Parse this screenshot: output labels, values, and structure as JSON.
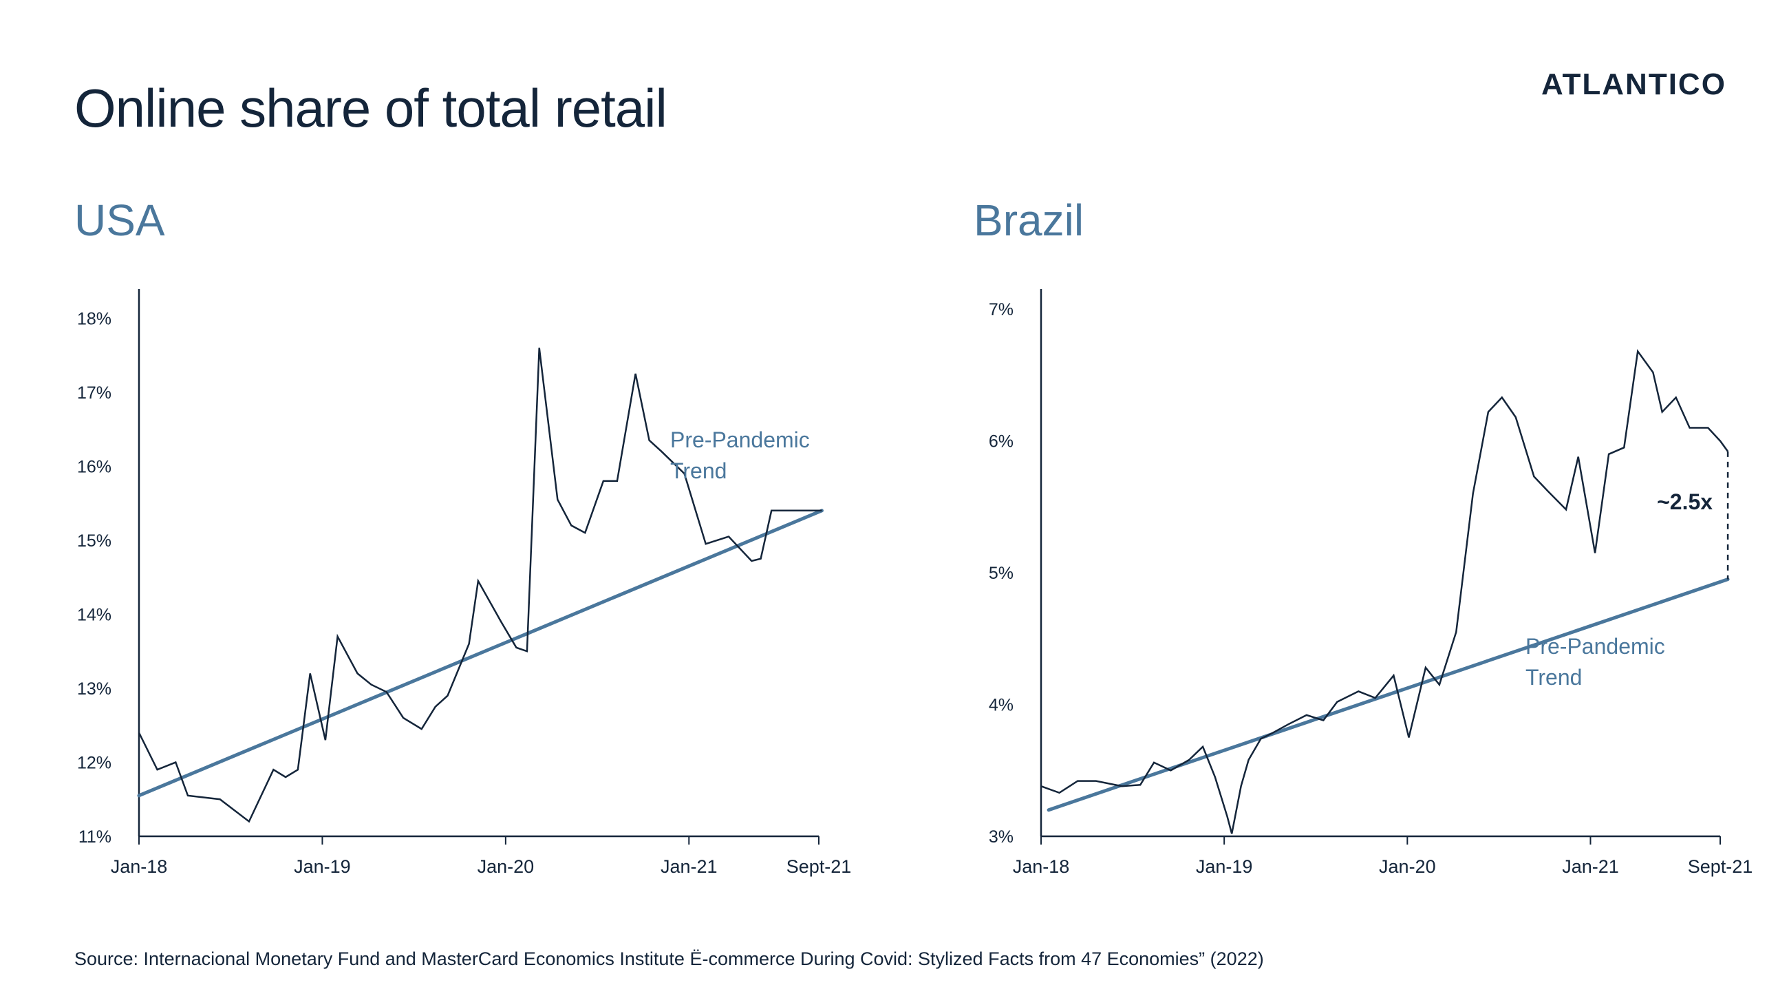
{
  "page": {
    "title": "Online share of total retail",
    "logo": "ATLANTICO",
    "source": "Source: Internacional Monetary Fund and MasterCard Economics Institute Ë-commerce During Covid: Stylized Facts from 47 Economies” (2022)"
  },
  "colors": {
    "ink": "#14253a",
    "accent": "#4a779c",
    "trend": "#4a779c",
    "line": "#14253a"
  },
  "chart_data": [
    {
      "type": "line",
      "title": "USA",
      "xlabel": "",
      "ylabel": "",
      "x_ticks": [
        "Jan-18",
        "Jan-19",
        "Jan-20",
        "Jan-21",
        "Sept-21"
      ],
      "x_tick_months": [
        0,
        12,
        24,
        36,
        44.5
      ],
      "xlim": [
        0,
        44.5
      ],
      "y_ticks": [
        "11%",
        "12%",
        "13%",
        "14%",
        "15%",
        "16%",
        "17%",
        "18%"
      ],
      "ylim": [
        11,
        18.3
      ],
      "series": [
        {
          "name": "",
          "x": [
            0,
            1.2,
            2.4,
            3.2,
            5.3,
            7.2,
            8.8,
            9.6,
            10.4,
            11.2,
            12.2,
            13,
            14.3,
            15.2,
            16.2,
            17.3,
            18.5,
            19.4,
            20.2,
            21.6,
            22.2,
            23.7,
            24.7,
            25.4,
            26.2,
            27.4,
            28.3,
            29.2,
            30.4,
            31.3,
            32.5,
            33.4,
            34.2,
            35.7,
            37.1,
            38.6,
            40.1,
            40.7,
            41.4,
            42.2,
            43.4,
            44.7
          ],
          "values": [
            12.4,
            11.9,
            12.0,
            11.55,
            11.5,
            11.2,
            11.9,
            11.8,
            11.9,
            13.2,
            12.3,
            13.7,
            13.2,
            13.05,
            12.95,
            12.6,
            12.45,
            12.75,
            12.9,
            13.6,
            14.45,
            13.9,
            13.55,
            13.5,
            17.6,
            15.55,
            15.2,
            15.1,
            15.8,
            15.8,
            17.25,
            16.35,
            16.2,
            15.9,
            14.95,
            15.05,
            14.72,
            14.75,
            15.4,
            15.4,
            15.4,
            15.4
          ]
        },
        {
          "name": "Pre-Pandemic Trend",
          "x": [
            0,
            44.7
          ],
          "values": [
            11.55,
            15.4
          ]
        }
      ],
      "annotations": [
        {
          "text_lines": [
            "Pre-Pandemic",
            "Trend"
          ]
        }
      ]
    },
    {
      "type": "line",
      "title": "Brazil",
      "xlabel": "",
      "ylabel": "",
      "x_ticks": [
        "Jan-18",
        "Jan-19",
        "Jan-20",
        "Jan-21",
        "Sept-21"
      ],
      "x_tick_months": [
        0,
        12,
        24,
        36,
        44.5
      ],
      "xlim": [
        0,
        44.5
      ],
      "y_ticks": [
        "3%",
        "4%",
        "5%",
        "6%",
        "7%"
      ],
      "ylim": [
        3,
        7.1
      ],
      "series": [
        {
          "name": "",
          "x": [
            0,
            1.2,
            2.4,
            3.6,
            5.3,
            6.5,
            7.4,
            8.5,
            9.7,
            10.6,
            11.4,
            12.2,
            12.5,
            13.1,
            13.6,
            14.4,
            15.1,
            16.2,
            17.4,
            18.5,
            19.4,
            20.8,
            21.9,
            23.1,
            24.1,
            25.2,
            26.1,
            27.2,
            28.3,
            29.3,
            30.2,
            31.1,
            32.3,
            33.2,
            34.4,
            35.2,
            36.3,
            37.2,
            38.2,
            39.1,
            40.1,
            40.7,
            41.6,
            42.5,
            43.7,
            44.5,
            45
          ],
          "values": [
            3.38,
            3.33,
            3.42,
            3.42,
            3.38,
            3.39,
            3.56,
            3.5,
            3.58,
            3.68,
            3.45,
            3.15,
            3.02,
            3.38,
            3.58,
            3.74,
            3.78,
            3.85,
            3.92,
            3.88,
            4.02,
            4.1,
            4.05,
            4.22,
            3.75,
            4.28,
            4.15,
            4.55,
            5.6,
            6.22,
            6.33,
            6.18,
            5.73,
            5.62,
            5.48,
            5.88,
            5.15,
            5.9,
            5.95,
            6.68,
            6.52,
            6.22,
            6.33,
            6.1,
            6.1,
            6.0,
            5.92
          ]
        },
        {
          "name": "Pre-Pandemic Trend",
          "x": [
            0.5,
            45
          ],
          "values": [
            3.2,
            4.95
          ]
        }
      ],
      "annotations": [
        {
          "text_lines": [
            "Pre-Pandemic",
            "Trend"
          ]
        },
        {
          "text": "~2.5x"
        }
      ]
    }
  ]
}
